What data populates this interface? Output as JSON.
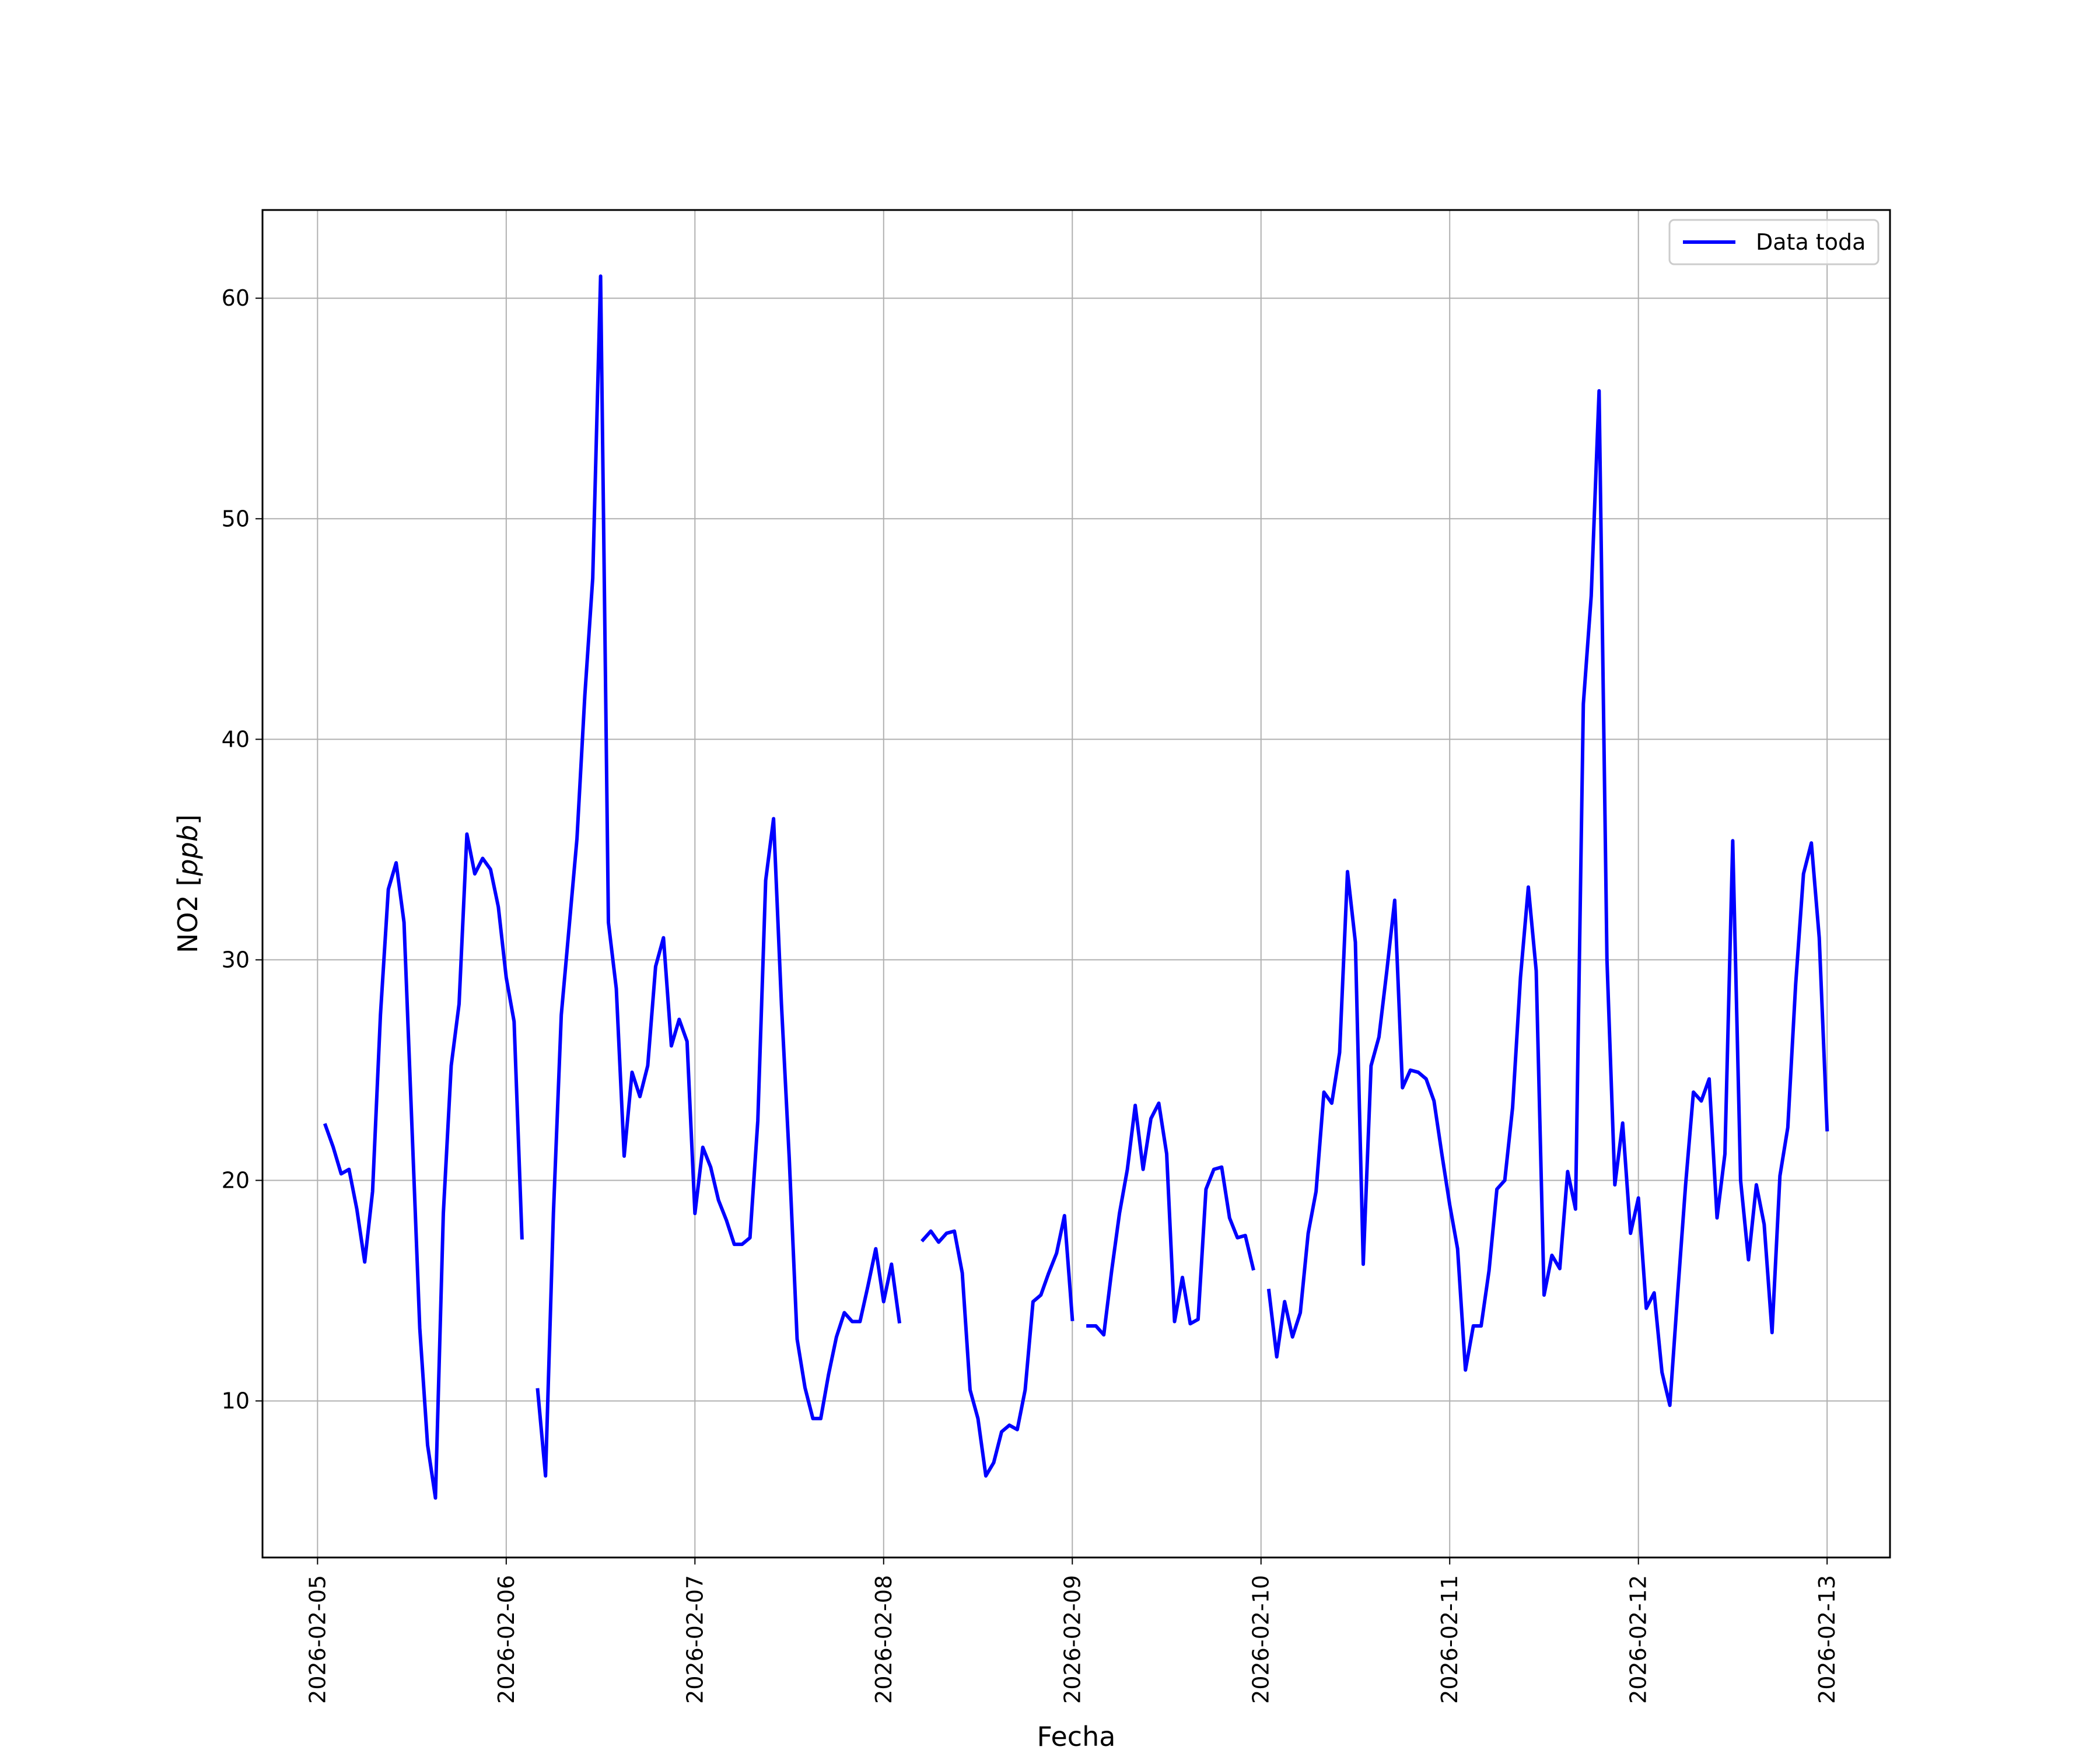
{
  "chart_data": {
    "type": "line",
    "xlabel": "Fecha",
    "ylabel_text": "NO2 [",
    "ylabel_unit": "ppb",
    "ylabel_close": "]",
    "grid": true,
    "legend": "top-right",
    "xlim": [
      "2026-02-04 17:00",
      "2026-02-13 08:00"
    ],
    "ylim": [
      2.9,
      64
    ],
    "x_ticks": [
      "2026-02-05",
      "2026-02-06",
      "2026-02-07",
      "2026-02-08",
      "2026-02-09",
      "2026-02-10",
      "2026-02-11",
      "2026-02-12",
      "2026-02-13"
    ],
    "y_ticks": [
      10,
      20,
      30,
      40,
      50,
      60
    ],
    "series": [
      {
        "name": "Data toda",
        "color": "#0000ff",
        "points": [
          [
            "2026-02-05 01:00",
            22.5
          ],
          [
            "2026-02-05 02:00",
            21.5
          ],
          [
            "2026-02-05 03:00",
            20.3
          ],
          [
            "2026-02-05 04:00",
            20.5
          ],
          [
            "2026-02-05 05:00",
            18.7
          ],
          [
            "2026-02-05 06:00",
            16.3
          ],
          [
            "2026-02-05 07:00",
            19.5
          ],
          [
            "2026-02-05 08:00",
            27.5
          ],
          [
            "2026-02-05 09:00",
            33.2
          ],
          [
            "2026-02-05 10:00",
            34.4
          ],
          [
            "2026-02-05 11:00",
            31.7
          ],
          [
            "2026-02-05 12:00",
            22.5
          ],
          [
            "2026-02-05 13:00",
            13.3
          ],
          [
            "2026-02-05 14:00",
            8.0
          ],
          [
            "2026-02-05 15:00",
            5.6
          ],
          [
            "2026-02-05 16:00",
            18.5
          ],
          [
            "2026-02-05 17:00",
            25.2
          ],
          [
            "2026-02-05 18:00",
            28.0
          ],
          [
            "2026-02-05 19:00",
            35.7
          ],
          [
            "2026-02-05 20:00",
            33.9
          ],
          [
            "2026-02-05 21:00",
            34.6
          ],
          [
            "2026-02-05 22:00",
            34.1
          ],
          [
            "2026-02-05 23:00",
            32.4
          ],
          [
            "2026-02-06 00:00",
            29.2
          ],
          [
            "2026-02-06 01:00",
            27.2
          ],
          [
            "2026-02-06 02:00",
            17.4
          ],
          [
            "2026-02-06 03:00",
            null
          ],
          [
            "2026-02-06 04:00",
            10.5
          ],
          [
            "2026-02-06 05:00",
            6.6
          ],
          [
            "2026-02-06 06:00",
            18.5
          ],
          [
            "2026-02-06 07:00",
            27.5
          ],
          [
            "2026-02-06 08:00",
            31.5
          ],
          [
            "2026-02-06 09:00",
            35.5
          ],
          [
            "2026-02-06 10:00",
            42.0
          ],
          [
            "2026-02-06 11:00",
            47.3
          ],
          [
            "2026-02-06 12:00",
            61.0
          ],
          [
            "2026-02-06 13:00",
            31.7
          ],
          [
            "2026-02-06 14:00",
            28.7
          ],
          [
            "2026-02-06 15:00",
            21.1
          ],
          [
            "2026-02-06 16:00",
            24.9
          ],
          [
            "2026-02-06 17:00",
            23.8
          ],
          [
            "2026-02-06 18:00",
            25.2
          ],
          [
            "2026-02-06 19:00",
            29.7
          ],
          [
            "2026-02-06 20:00",
            31.0
          ],
          [
            "2026-02-06 21:00",
            26.1
          ],
          [
            "2026-02-06 22:00",
            27.3
          ],
          [
            "2026-02-06 23:00",
            26.3
          ],
          [
            "2026-02-07 00:00",
            18.5
          ],
          [
            "2026-02-07 01:00",
            21.5
          ],
          [
            "2026-02-07 02:00",
            20.6
          ],
          [
            "2026-02-07 03:00",
            19.1
          ],
          [
            "2026-02-07 04:00",
            18.2
          ],
          [
            "2026-02-07 05:00",
            17.1
          ],
          [
            "2026-02-07 06:00",
            17.1
          ],
          [
            "2026-02-07 07:00",
            17.4
          ],
          [
            "2026-02-07 08:00",
            22.7
          ],
          [
            "2026-02-07 09:00",
            33.6
          ],
          [
            "2026-02-07 10:00",
            36.4
          ],
          [
            "2026-02-07 11:00",
            28.0
          ],
          [
            "2026-02-07 12:00",
            21.0
          ],
          [
            "2026-02-07 13:00",
            12.8
          ],
          [
            "2026-02-07 14:00",
            10.6
          ],
          [
            "2026-02-07 15:00",
            9.2
          ],
          [
            "2026-02-07 16:00",
            9.2
          ],
          [
            "2026-02-07 17:00",
            11.2
          ],
          [
            "2026-02-07 18:00",
            12.9
          ],
          [
            "2026-02-07 19:00",
            14.0
          ],
          [
            "2026-02-07 20:00",
            13.6
          ],
          [
            "2026-02-07 21:00",
            13.6
          ],
          [
            "2026-02-07 22:00",
            15.2
          ],
          [
            "2026-02-07 23:00",
            16.9
          ],
          [
            "2026-02-08 00:00",
            14.5
          ],
          [
            "2026-02-08 01:00",
            16.2
          ],
          [
            "2026-02-08 02:00",
            13.6
          ],
          [
            "2026-02-08 03:00",
            null
          ],
          [
            "2026-02-08 04:00",
            null
          ],
          [
            "2026-02-08 05:00",
            17.3
          ],
          [
            "2026-02-08 06:00",
            17.7
          ],
          [
            "2026-02-08 07:00",
            17.2
          ],
          [
            "2026-02-08 08:00",
            17.6
          ],
          [
            "2026-02-08 09:00",
            17.7
          ],
          [
            "2026-02-08 10:00",
            15.8
          ],
          [
            "2026-02-08 11:00",
            10.5
          ],
          [
            "2026-02-08 12:00",
            9.2
          ],
          [
            "2026-02-08 13:00",
            6.6
          ],
          [
            "2026-02-08 14:00",
            7.2
          ],
          [
            "2026-02-08 15:00",
            8.6
          ],
          [
            "2026-02-08 16:00",
            8.9
          ],
          [
            "2026-02-08 17:00",
            8.7
          ],
          [
            "2026-02-08 18:00",
            10.5
          ],
          [
            "2026-02-08 19:00",
            14.5
          ],
          [
            "2026-02-08 20:00",
            14.8
          ],
          [
            "2026-02-08 21:00",
            15.8
          ],
          [
            "2026-02-08 22:00",
            16.7
          ],
          [
            "2026-02-08 23:00",
            18.4
          ],
          [
            "2026-02-09 00:00",
            13.7
          ],
          [
            "2026-02-09 01:00",
            null
          ],
          [
            "2026-02-09 02:00",
            13.4
          ],
          [
            "2026-02-09 03:00",
            13.4
          ],
          [
            "2026-02-09 04:00",
            13.0
          ],
          [
            "2026-02-09 05:00",
            15.9
          ],
          [
            "2026-02-09 06:00",
            18.5
          ],
          [
            "2026-02-09 07:00",
            20.5
          ],
          [
            "2026-02-09 08:00",
            23.4
          ],
          [
            "2026-02-09 09:00",
            20.5
          ],
          [
            "2026-02-09 10:00",
            22.8
          ],
          [
            "2026-02-09 11:00",
            23.5
          ],
          [
            "2026-02-09 12:00",
            21.2
          ],
          [
            "2026-02-09 13:00",
            13.6
          ],
          [
            "2026-02-09 14:00",
            15.6
          ],
          [
            "2026-02-09 15:00",
            13.5
          ],
          [
            "2026-02-09 16:00",
            13.7
          ],
          [
            "2026-02-09 17:00",
            19.6
          ],
          [
            "2026-02-09 18:00",
            20.5
          ],
          [
            "2026-02-09 19:00",
            20.6
          ],
          [
            "2026-02-09 20:00",
            18.3
          ],
          [
            "2026-02-09 21:00",
            17.4
          ],
          [
            "2026-02-09 22:00",
            17.5
          ],
          [
            "2026-02-09 23:00",
            16.0
          ],
          [
            "2026-02-10 00:00",
            null
          ],
          [
            "2026-02-10 01:00",
            15.0
          ],
          [
            "2026-02-10 02:00",
            12.0
          ],
          [
            "2026-02-10 03:00",
            14.5
          ],
          [
            "2026-02-10 04:00",
            12.9
          ],
          [
            "2026-02-10 05:00",
            14.0
          ],
          [
            "2026-02-10 06:00",
            17.6
          ],
          [
            "2026-02-10 07:00",
            19.5
          ],
          [
            "2026-02-10 08:00",
            24.0
          ],
          [
            "2026-02-10 09:00",
            23.5
          ],
          [
            "2026-02-10 10:00",
            25.8
          ],
          [
            "2026-02-10 11:00",
            34.0
          ],
          [
            "2026-02-10 12:00",
            30.8
          ],
          [
            "2026-02-10 13:00",
            16.2
          ],
          [
            "2026-02-10 14:00",
            25.2
          ],
          [
            "2026-02-10 15:00",
            26.5
          ],
          [
            "2026-02-10 16:00",
            29.5
          ],
          [
            "2026-02-10 17:00",
            32.7
          ],
          [
            "2026-02-10 18:00",
            24.2
          ],
          [
            "2026-02-10 19:00",
            25.0
          ],
          [
            "2026-02-10 20:00",
            24.9
          ],
          [
            "2026-02-10 21:00",
            24.6
          ],
          [
            "2026-02-10 22:00",
            23.6
          ],
          [
            "2026-02-10 23:00",
            21.2
          ],
          [
            "2026-02-11 00:00",
            18.9
          ],
          [
            "2026-02-11 01:00",
            16.9
          ],
          [
            "2026-02-11 02:00",
            11.4
          ],
          [
            "2026-02-11 03:00",
            13.4
          ],
          [
            "2026-02-11 04:00",
            13.4
          ],
          [
            "2026-02-11 05:00",
            15.9
          ],
          [
            "2026-02-11 06:00",
            19.6
          ],
          [
            "2026-02-11 07:00",
            20.0
          ],
          [
            "2026-02-11 08:00",
            23.3
          ],
          [
            "2026-02-11 09:00",
            29.2
          ],
          [
            "2026-02-11 10:00",
            33.3
          ],
          [
            "2026-02-11 11:00",
            29.5
          ],
          [
            "2026-02-11 12:00",
            14.8
          ],
          [
            "2026-02-11 13:00",
            16.6
          ],
          [
            "2026-02-11 14:00",
            16.0
          ],
          [
            "2026-02-11 15:00",
            20.4
          ],
          [
            "2026-02-11 16:00",
            18.7
          ],
          [
            "2026-02-11 17:00",
            41.6
          ],
          [
            "2026-02-11 18:00",
            46.5
          ],
          [
            "2026-02-11 19:00",
            55.8
          ],
          [
            "2026-02-11 20:00",
            30.0
          ],
          [
            "2026-02-11 21:00",
            19.8
          ],
          [
            "2026-02-11 22:00",
            22.6
          ],
          [
            "2026-02-11 23:00",
            17.6
          ],
          [
            "2026-02-12 00:00",
            19.2
          ],
          [
            "2026-02-12 01:00",
            14.2
          ],
          [
            "2026-02-12 02:00",
            14.9
          ],
          [
            "2026-02-12 03:00",
            11.3
          ],
          [
            "2026-02-12 04:00",
            9.8
          ],
          [
            "2026-02-12 05:00",
            14.9
          ],
          [
            "2026-02-12 06:00",
            19.8
          ],
          [
            "2026-02-12 07:00",
            24.0
          ],
          [
            "2026-02-12 08:00",
            23.6
          ],
          [
            "2026-02-12 09:00",
            24.6
          ],
          [
            "2026-02-12 10:00",
            18.3
          ],
          [
            "2026-02-12 11:00",
            21.2
          ],
          [
            "2026-02-12 12:00",
            35.4
          ],
          [
            "2026-02-12 13:00",
            20.0
          ],
          [
            "2026-02-12 14:00",
            16.4
          ],
          [
            "2026-02-12 15:00",
            19.8
          ],
          [
            "2026-02-12 16:00",
            18.0
          ],
          [
            "2026-02-12 17:00",
            13.1
          ],
          [
            "2026-02-12 18:00",
            20.2
          ],
          [
            "2026-02-12 19:00",
            22.4
          ],
          [
            "2026-02-12 20:00",
            28.9
          ],
          [
            "2026-02-12 21:00",
            33.9
          ],
          [
            "2026-02-12 22:00",
            35.3
          ],
          [
            "2026-02-12 23:00",
            31.0
          ],
          [
            "2026-02-13 00:00",
            22.3
          ]
        ]
      }
    ]
  }
}
